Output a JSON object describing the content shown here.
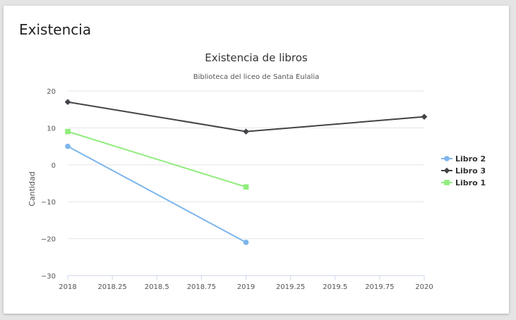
{
  "card": {
    "title": "Existencia"
  },
  "chart_data": {
    "type": "line",
    "title": "Existencia de libros",
    "subtitle": "Biblioteca del liceo de Santa Eulalia",
    "xlabel": "",
    "ylabel": "Cantidad",
    "xlim": [
      2018,
      2020
    ],
    "ylim": [
      -30,
      20
    ],
    "x_ticks": [
      2018,
      2018.25,
      2018.5,
      2018.75,
      2019,
      2019.25,
      2019.5,
      2019.75,
      2020
    ],
    "y_ticks": [
      -30,
      -20,
      -10,
      0,
      10,
      20
    ],
    "grid": true,
    "legend_position": "right",
    "series": [
      {
        "name": "Libro 2",
        "color": "#7cb5ec",
        "marker": "circle",
        "points": [
          [
            2018,
            5
          ],
          [
            2019,
            -21
          ]
        ]
      },
      {
        "name": "Libro 3",
        "color": "#434348",
        "marker": "diamond",
        "points": [
          [
            2018,
            17
          ],
          [
            2019,
            9
          ],
          [
            2020,
            13
          ]
        ]
      },
      {
        "name": "Libro 1",
        "color": "#90ed7d",
        "marker": "square",
        "points": [
          [
            2018,
            9
          ],
          [
            2019,
            -6
          ]
        ]
      }
    ]
  }
}
